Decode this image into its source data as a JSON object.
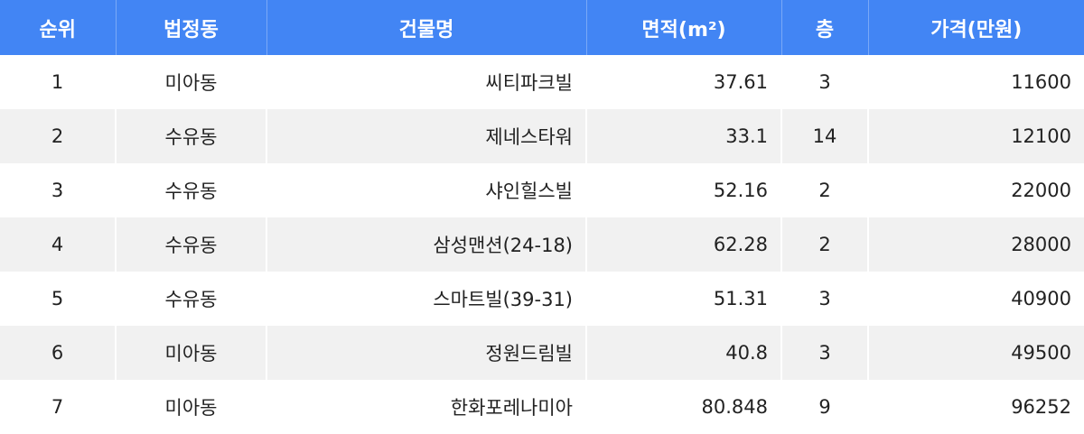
{
  "table": {
    "headers": {
      "rank": "순위",
      "dong": "법정동",
      "building": "건물명",
      "area": "면적(m²)",
      "floor": "층",
      "price": "가격(만원)"
    },
    "rows": [
      {
        "rank": "1",
        "dong": "미아동",
        "building": "씨티파크빌",
        "area": "37.61",
        "floor": "3",
        "price": "11600"
      },
      {
        "rank": "2",
        "dong": "수유동",
        "building": "제네스타워",
        "area": "33.1",
        "floor": "14",
        "price": "12100"
      },
      {
        "rank": "3",
        "dong": "수유동",
        "building": "샤인힐스빌",
        "area": "52.16",
        "floor": "2",
        "price": "22000"
      },
      {
        "rank": "4",
        "dong": "수유동",
        "building": "삼성맨션(24-18)",
        "area": "62.28",
        "floor": "2",
        "price": "28000"
      },
      {
        "rank": "5",
        "dong": "수유동",
        "building": "스마트빌(39-31)",
        "area": "51.31",
        "floor": "3",
        "price": "40900"
      },
      {
        "rank": "6",
        "dong": "미아동",
        "building": "정원드림빌",
        "area": "40.8",
        "floor": "3",
        "price": "49500"
      },
      {
        "rank": "7",
        "dong": "미아동",
        "building": "한화포레나미아",
        "area": "80.848",
        "floor": "9",
        "price": "96252"
      }
    ]
  },
  "colors": {
    "header_bg": "#4285f4",
    "header_text": "#ffffff",
    "row_alt_bg": "#f1f1f1"
  }
}
